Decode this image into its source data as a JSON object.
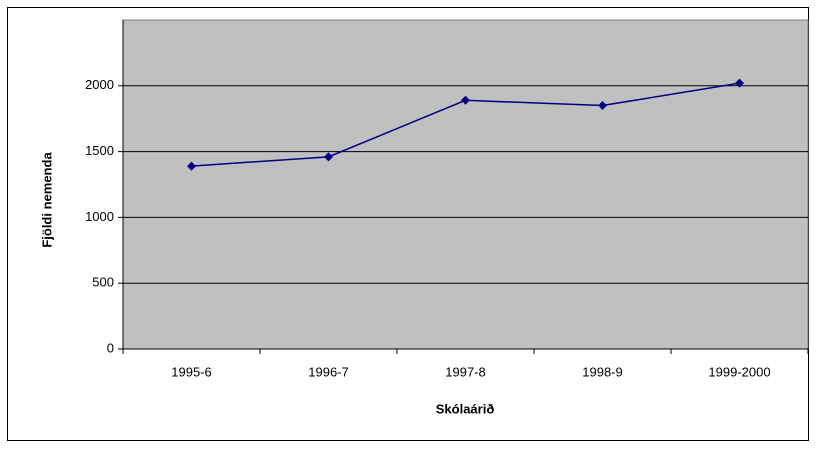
{
  "chart_data": {
    "type": "line",
    "x_label": "Skólaárið",
    "y_label": "Fjöldi nemenda",
    "categories": [
      "1995-6",
      "1996-7",
      "1997-8",
      "1998-9",
      "1999-2000"
    ],
    "series": [
      {
        "name": "Fjöldi nemenda",
        "color": "#000080",
        "values": [
          1390,
          1460,
          1890,
          1850,
          2020
        ]
      }
    ],
    "ylim": [
      0,
      2500
    ],
    "yticks": [
      0,
      500,
      1000,
      1500,
      2000
    ],
    "grid": true,
    "plot_background": "#c0c0c0"
  }
}
